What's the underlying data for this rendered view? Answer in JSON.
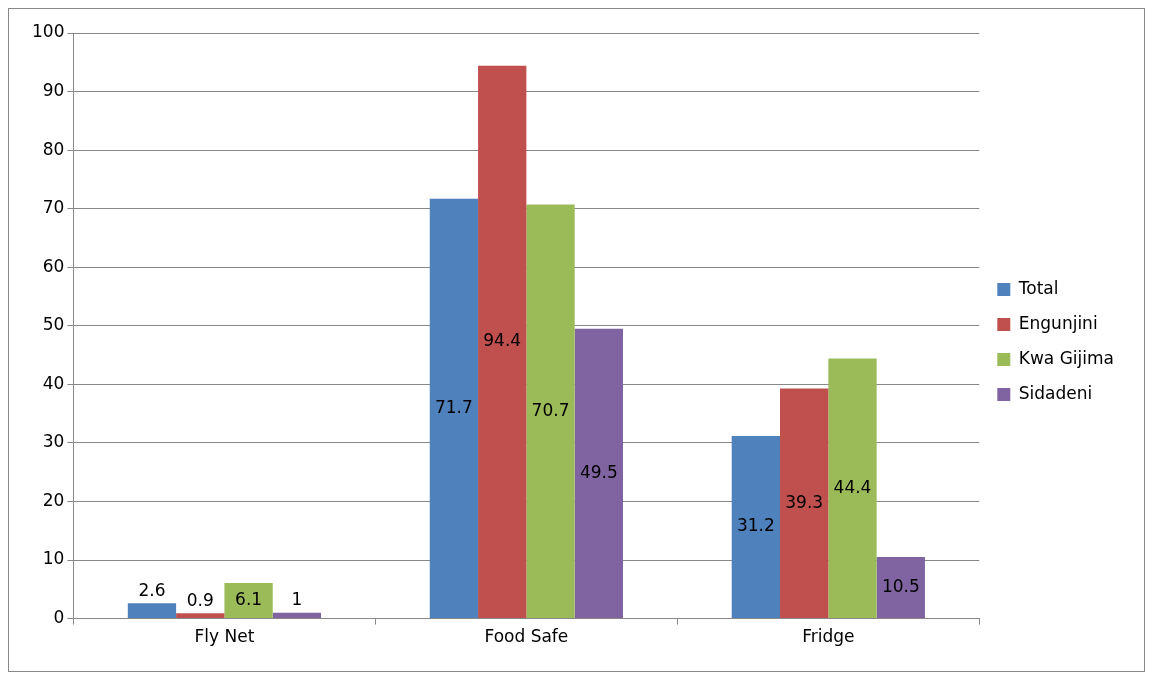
{
  "chart_data": {
    "type": "bar",
    "categories": [
      "Fly Net",
      "Food Safe",
      "Fridge"
    ],
    "series": [
      {
        "name": "Total",
        "color": "#4f81bd",
        "values": [
          2.6,
          71.7,
          31.2
        ]
      },
      {
        "name": "Engunjini",
        "color": "#c0504d",
        "values": [
          0.9,
          94.4,
          39.3
        ]
      },
      {
        "name": "Kwa Gijima",
        "color": "#9bbb59",
        "values": [
          6.1,
          70.7,
          44.4
        ]
      },
      {
        "name": "Sidadeni",
        "color": "#8064a2",
        "values": [
          1,
          49.5,
          10.5
        ]
      }
    ],
    "ylim": [
      0,
      100
    ],
    "yticks": [
      0,
      10,
      20,
      30,
      40,
      50,
      60,
      70,
      80,
      90,
      100
    ],
    "grid": "y",
    "legend": "right",
    "data_labels": true
  }
}
